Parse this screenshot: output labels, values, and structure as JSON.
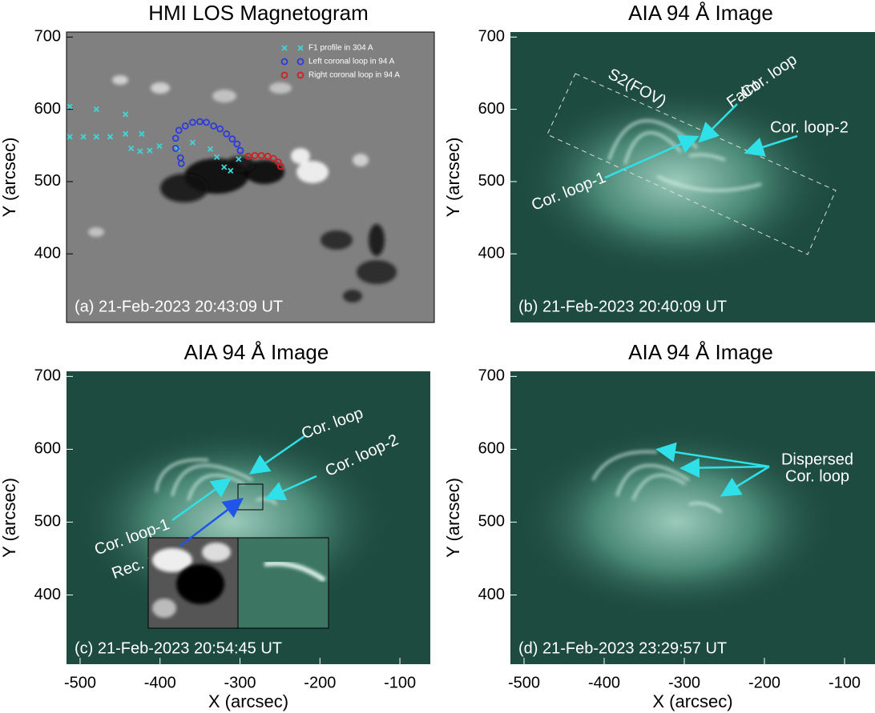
{
  "chart_data": [
    {
      "type": "scatter",
      "title": "HMI LOS Magnetogram",
      "caption": "(a) 21-Feb-2023 20:43:09 UT",
      "ylabel": "Y (arcsec)",
      "xlim": [
        -517,
        -62
      ],
      "ylim": [
        305,
        707
      ],
      "yticks": [
        400,
        500,
        600,
        700
      ],
      "series": [
        {
          "name": "F1 profile in 304 A",
          "color": "#3fd6d6",
          "marker": "x",
          "x": [
            -513,
            -513,
            -496,
            -480,
            -480,
            -463,
            -444,
            -444,
            -424,
            -437,
            -426,
            -414,
            -402,
            -380,
            -361,
            -339,
            -331,
            -322,
            -314,
            -304
          ],
          "y": [
            604,
            562,
            562,
            562,
            600,
            562,
            593,
            566,
            566,
            546,
            542,
            543,
            549,
            545,
            554,
            545,
            534,
            520,
            515,
            531
          ]
        },
        {
          "name": "Left coronal loop in 94 A",
          "color": "#2b3bdc",
          "marker": "o",
          "x": [
            -375,
            -376,
            -382,
            -382,
            -378,
            -370,
            -361,
            -352,
            -344,
            -335,
            -327,
            -319,
            -312,
            -306,
            -302
          ],
          "y": [
            525,
            533,
            546,
            560,
            571,
            577,
            582,
            583,
            582,
            577,
            573,
            566,
            559,
            552,
            543
          ]
        },
        {
          "name": "Right coronal loop in 94 A",
          "color": "#cc2222",
          "marker": "o",
          "x": [
            -292,
            -284,
            -276,
            -268,
            -261,
            -255,
            -252
          ],
          "y": [
            535,
            536,
            536,
            535,
            532,
            527,
            521
          ]
        }
      ]
    },
    {
      "type": "image",
      "title": "AIA 94 Å Image",
      "caption": "(b) 21-Feb-2023 20:40:09 UT",
      "ylabel": "Y (arcsec)",
      "xlim": [
        -517,
        -62
      ],
      "ylim": [
        305,
        707
      ],
      "yticks": [
        400,
        500,
        600,
        700
      ],
      "annotations": [
        "S2(FOV)",
        "Faint",
        "Cor. loop",
        "Cor. loop-2",
        "Cor. loop-1"
      ]
    },
    {
      "type": "image",
      "title": "AIA 94 Å Image",
      "caption": "(c) 21-Feb-2023 20:54:45 UT",
      "xlabel": "X (arcsec)",
      "ylabel": "Y (arcsec)",
      "xlim": [
        -517,
        -62
      ],
      "ylim": [
        305,
        707
      ],
      "xticks": [
        -500,
        -400,
        -300,
        -200,
        -100
      ],
      "yticks": [
        400,
        500,
        600,
        700
      ],
      "annotations": [
        "Cor. loop",
        "Cor. loop-2",
        "Cor. loop-1",
        "Rec. point"
      ]
    },
    {
      "type": "image",
      "title": "AIA 94 Å Image",
      "caption": "(d) 21-Feb-2023 23:29:57 UT",
      "xlabel": "X (arcsec)",
      "ylabel": "Y (arcsec)",
      "xlim": [
        -517,
        -62
      ],
      "ylim": [
        305,
        707
      ],
      "xticks": [
        -500,
        -400,
        -300,
        -200,
        -100
      ],
      "yticks": [
        400,
        500,
        600,
        700
      ],
      "annotations": [
        "Dispersed",
        "Cor. loop"
      ]
    }
  ]
}
